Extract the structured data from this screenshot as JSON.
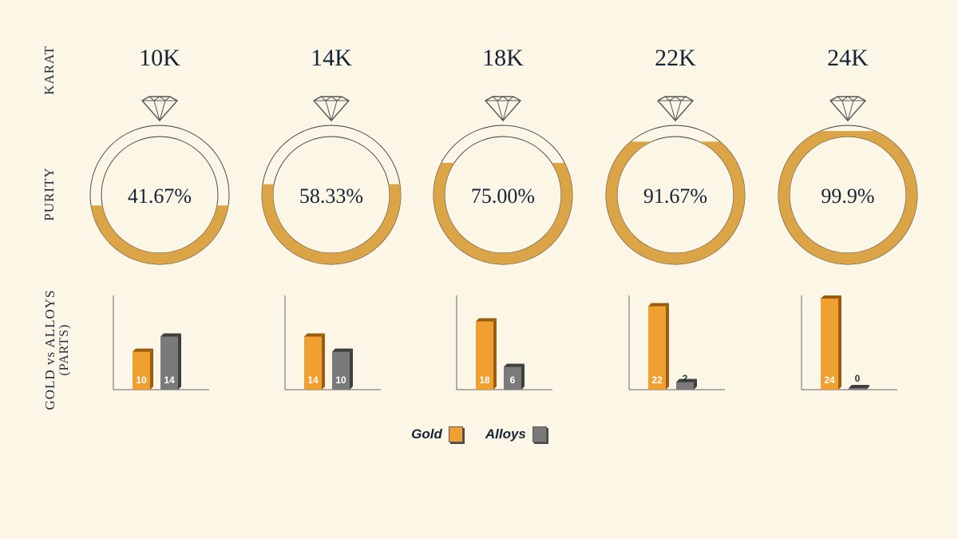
{
  "row_labels": {
    "karat": "KARAT",
    "purity": "PURITY",
    "gold_vs_alloys_line1": "GOLD vs ALLOYS",
    "gold_vs_alloys_line2": "(PARTS)"
  },
  "colors": {
    "gold": "#e9a23a",
    "gold_ring": "#dba446",
    "alloy": "#7a7a7a",
    "text": "#16243a",
    "background": "#fbf6e6"
  },
  "legend": [
    {
      "label": "Gold",
      "color": "#f0a030"
    },
    {
      "label": "Alloys",
      "color": "#7a7a7a"
    }
  ],
  "chart_data": {
    "type": "bar",
    "categories": [
      "10K",
      "14K",
      "18K",
      "22K",
      "24K"
    ],
    "purity_labels": [
      "41.67%",
      "58.33%",
      "75.00%",
      "91.67%",
      "99.9%"
    ],
    "purity_values": [
      41.67,
      58.33,
      75.0,
      91.67,
      99.9
    ],
    "series": [
      {
        "name": "Gold",
        "values": [
          10,
          14,
          18,
          22,
          24
        ]
      },
      {
        "name": "Alloys",
        "values": [
          14,
          10,
          6,
          2,
          0
        ]
      }
    ],
    "ylim": [
      0,
      24
    ]
  }
}
